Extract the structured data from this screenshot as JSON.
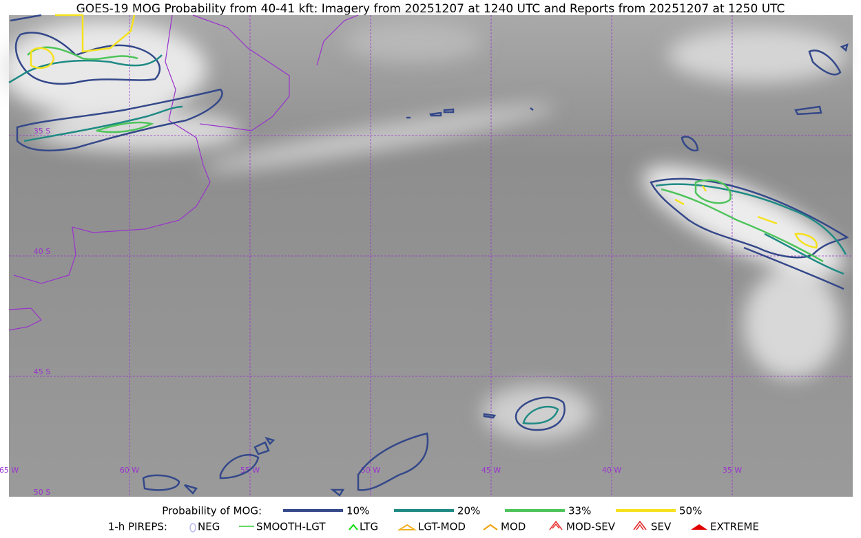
{
  "title": "GOES-19 MOG Probability from 40-41 kft: Imagery from 20251207 at 1240 UTC and Reports from 20251207 at 1250 UTC",
  "map": {
    "lon_labels": [
      "65 W",
      "60 W",
      "55 W",
      "50 W",
      "45 W",
      "40 W",
      "35 W"
    ],
    "lat_labels": [
      "35 S",
      "40 S",
      "45 S",
      "50 S"
    ]
  },
  "legend": {
    "probability": {
      "label": "Probability of MOG:",
      "items": [
        {
          "label": "10%",
          "color": "#34488a"
        },
        {
          "label": "20%",
          "color": "#1f8a84"
        },
        {
          "label": "33%",
          "color": "#4dc45a"
        },
        {
          "label": "50%",
          "color": "#f5e11d"
        }
      ]
    },
    "pireps": {
      "label": "1-h PIREPS:",
      "items": [
        {
          "label": "NEG",
          "color": "#b9b9f0"
        },
        {
          "label": "SMOOTH-LGT",
          "color": "#33cc33"
        },
        {
          "label": "LTG",
          "color": "#00dd00"
        },
        {
          "label": "LGT-MOD",
          "color": "#f0b020"
        },
        {
          "label": "MOD",
          "color": "#f0a000"
        },
        {
          "label": "MOD-SEV",
          "color": "#e83030"
        },
        {
          "label": "SEV",
          "color": "#e02020"
        },
        {
          "label": "EXTREME",
          "color": "#e00000"
        }
      ]
    }
  }
}
